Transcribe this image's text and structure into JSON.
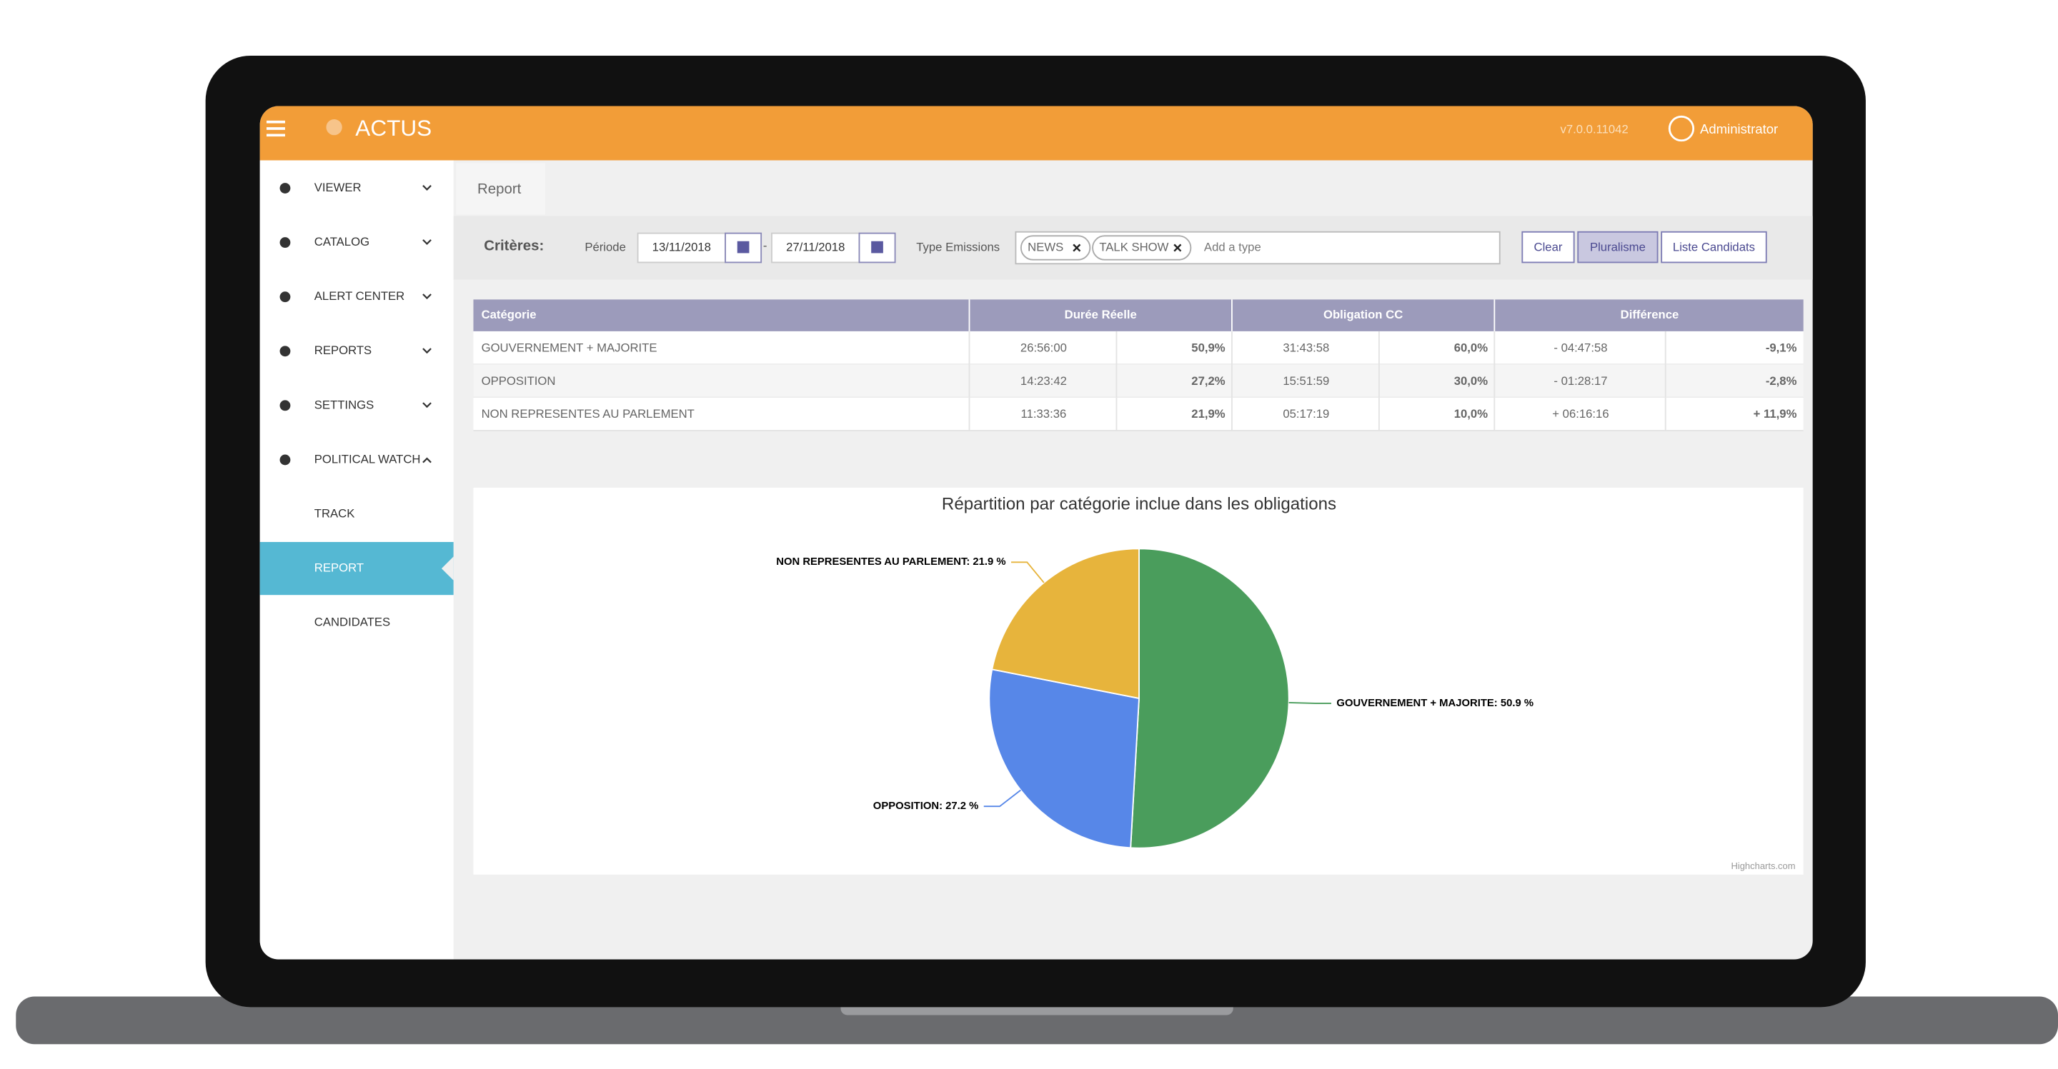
{
  "header": {
    "logo": "ACTUS",
    "version": "v7.0.0.11042",
    "user": "Administrator"
  },
  "sidebar": {
    "items": [
      "VIEWER",
      "CATALOG",
      "ALERT CENTER",
      "REPORTS",
      "SETTINGS",
      "POLITICAL WATCH"
    ],
    "subitems": [
      "TRACK",
      "REPORT",
      "CANDIDATES"
    ],
    "active": 1
  },
  "tab": "Report",
  "criteria": {
    "label": "Critères:",
    "period_label": "Période",
    "date_from": "13/11/2018",
    "separator": "-",
    "date_to": "27/11/2018",
    "type_label": "Type Emissions",
    "tags": [
      "NEWS",
      "TALK SHOW"
    ],
    "placeholder": "Add a type",
    "buttons": [
      "Clear",
      "Pluralisme",
      "Liste Candidats"
    ]
  },
  "table": {
    "headers": [
      "Catégorie",
      "Durée Réelle",
      "Obligation CC",
      "Différence"
    ],
    "rows": [
      [
        "GOUVERNEMENT + MAJORITE",
        "26:56:00",
        "50,9%",
        "31:43:58",
        "60,0%",
        "- 04:47:58",
        "-9,1%"
      ],
      [
        "OPPOSITION",
        "14:23:42",
        "27,2%",
        "15:51:59",
        "30,0%",
        "- 01:28:17",
        "-2,8%"
      ],
      [
        "NON REPRESENTES AU PARLEMENT",
        "11:33:36",
        "21,9%",
        "05:17:19",
        "10,0%",
        "+ 06:16:16",
        "+ 11,9%"
      ]
    ]
  },
  "chart_data": {
    "type": "pie",
    "title": "Répartition par catégorie inclue dans les obligations",
    "values": [
      50.9,
      27.2,
      21.9
    ],
    "value_labels": [
      "GOUVERNEMENT + MAJORITE: 50.9 %",
      "OPPOSITION: 27.2 %",
      "NON REPRESENTES AU PARLEMENT: 21.9 %"
    ],
    "colors": [
      "#4a9d5c",
      "#5787e8",
      "#e7b43c"
    ],
    "credits": "Highcharts.com"
  }
}
